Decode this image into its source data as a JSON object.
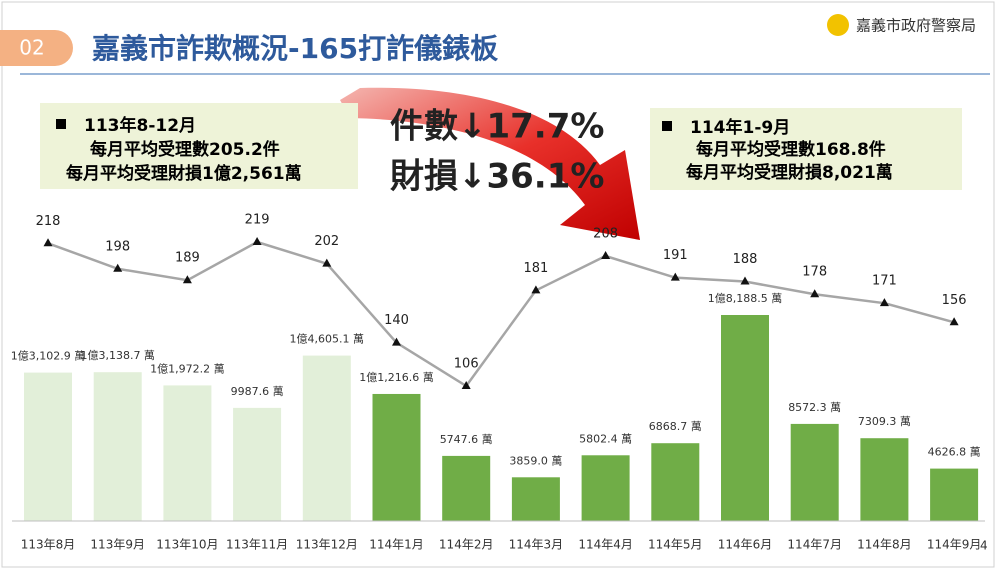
{
  "slide": {
    "badge": "02",
    "title": "嘉義市詐欺概況-165打詐儀錶板",
    "agency": "嘉義市政府警察局",
    "box_left": [
      "113年8-12月",
      "每月平均受理數205.2件",
      "每月平均受理財損1億2,561萬"
    ],
    "headline": [
      "件數↓17.7%",
      "財損↓36.1%"
    ],
    "box_right": [
      "114年1-9月",
      "每月平均受理數168.8件",
      "每月平均受理財損8,021萬"
    ],
    "page_number": "4"
  },
  "chart_data": {
    "type": "bar-line",
    "categories": [
      "113年8月",
      "113年9月",
      "113年10月",
      "113年11月",
      "113年12月",
      "114年1月",
      "114年2月",
      "114年3月",
      "114年4月",
      "114年5月",
      "114年6月",
      "114年7月",
      "114年8月",
      "114年9月"
    ],
    "series": [
      {
        "type": "bar",
        "colors": [
          "#e2efd9",
          "#e2efd9",
          "#e2efd9",
          "#e2efd9",
          "#e2efd9",
          "#70ad47",
          "#70ad47",
          "#70ad47",
          "#70ad47",
          "#70ad47",
          "#70ad47",
          "#70ad47",
          "#70ad47",
          "#70ad47"
        ],
        "values": [
          13102.9,
          13138.7,
          11972.2,
          9987.6,
          14605.1,
          11216.6,
          5747.6,
          3859.0,
          5802.4,
          6868.7,
          18188.5,
          8572.3,
          7309.3,
          4626.8
        ],
        "value_labels": [
          "1億3,102.9 萬",
          "1億3,138.7 萬",
          "1億1,972.2 萬",
          "9987.6 萬",
          "1億4,605.1 萬",
          "1億1,216.6 萬",
          "5747.6 萬",
          "3859.0 萬",
          "5802.4 萬",
          "6868.7 萬",
          "1億8,188.5 萬",
          "8572.3 萬",
          "7309.3 萬",
          "4626.8 萬"
        ]
      },
      {
        "type": "line",
        "color": "#a6a6a6",
        "values": [
          218,
          198,
          189,
          219,
          202,
          140,
          106,
          181,
          208,
          191,
          188,
          178,
          171,
          156
        ]
      }
    ]
  }
}
